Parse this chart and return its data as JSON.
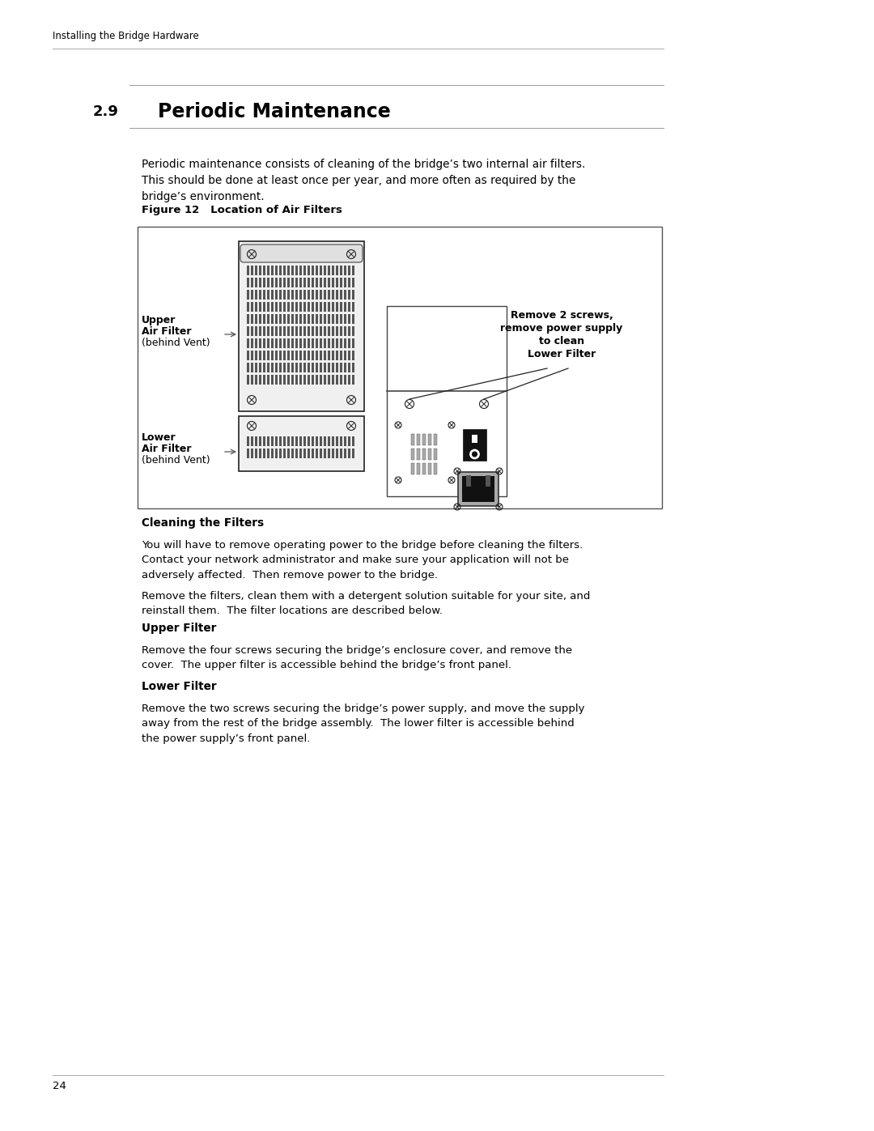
{
  "bg_color": "#ffffff",
  "header_text": "Installing the Bridge Hardware",
  "section_num": "2.9",
  "section_title": "Periodic Maintenance",
  "intro_text": "Periodic maintenance consists of cleaning of the bridge’s two internal air filters.\nThis should be done at least once per year, and more often as required by the\nbridge’s environment.",
  "figure_label": "Figure 12   Location of Air Filters",
  "upper_label_line1": "Upper",
  "upper_label_line2": "Air Filter",
  "upper_label_line3": "(behind Vent)",
  "lower_label_line1": "Lower",
  "lower_label_line2": "Air Filter",
  "lower_label_line3": "(behind Vent)",
  "right_label_line1": "Remove 2 screws,",
  "right_label_line2": "remove power supply",
  "right_label_line3": "to clean",
  "right_label_line4": "Lower Filter",
  "section2_title": "Cleaning the Filters",
  "section2_text": "You will have to remove operating power to the bridge before cleaning the filters.\nContact your network administrator and make sure your application will not be\nadversely affected.  Then remove power to the bridge.",
  "section3_text": "Remove the filters, clean them with a detergent solution suitable for your site, and\nreinstall them.  The filter locations are described below.",
  "section4_title": "Upper Filter",
  "section4_text": "Remove the four screws securing the bridge’s enclosure cover, and remove the\ncover.  The upper filter is accessible behind the bridge’s front panel.",
  "section5_title": "Lower Filter",
  "section5_text": "Remove the two screws securing the bridge’s power supply, and move the supply\naway from the rest of the bridge assembly.  The lower filter is accessible behind\nthe power supply’s front panel.",
  "page_number": "24"
}
